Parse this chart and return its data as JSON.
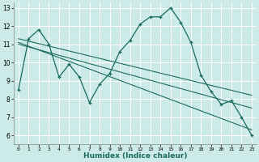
{
  "xlabel": "Humidex (Indice chaleur)",
  "bg_color": "#cceae7",
  "grid_color": "#ffffff",
  "line_color": "#1a6b5e",
  "x_values": [
    0,
    1,
    2,
    3,
    4,
    5,
    6,
    7,
    8,
    9,
    10,
    11,
    12,
    13,
    14,
    15,
    16,
    17,
    18,
    19,
    20,
    21,
    22,
    23
  ],
  "y_main": [
    8.5,
    11.3,
    11.8,
    11.0,
    9.2,
    9.9,
    9.2,
    7.8,
    8.8,
    9.4,
    10.6,
    11.2,
    12.1,
    12.5,
    12.5,
    13.0,
    12.2,
    11.1,
    9.3,
    8.4,
    7.7,
    7.9,
    7.0,
    6.0
  ],
  "ylim": [
    5.5,
    13.3
  ],
  "xlim": [
    -0.5,
    23.5
  ],
  "yticks": [
    6,
    7,
    8,
    9,
    10,
    11,
    12,
    13
  ],
  "xticks": [
    0,
    1,
    2,
    3,
    4,
    5,
    6,
    7,
    8,
    9,
    10,
    11,
    12,
    13,
    14,
    15,
    16,
    17,
    18,
    19,
    20,
    21,
    22,
    23
  ],
  "trend1_x": [
    0,
    23
  ],
  "trend1_y": [
    11.3,
    8.2
  ],
  "trend2_x": [
    0,
    23
  ],
  "trend2_y": [
    11.0,
    7.5
  ],
  "trend3_x": [
    0,
    23
  ],
  "trend3_y": [
    11.1,
    6.3
  ]
}
